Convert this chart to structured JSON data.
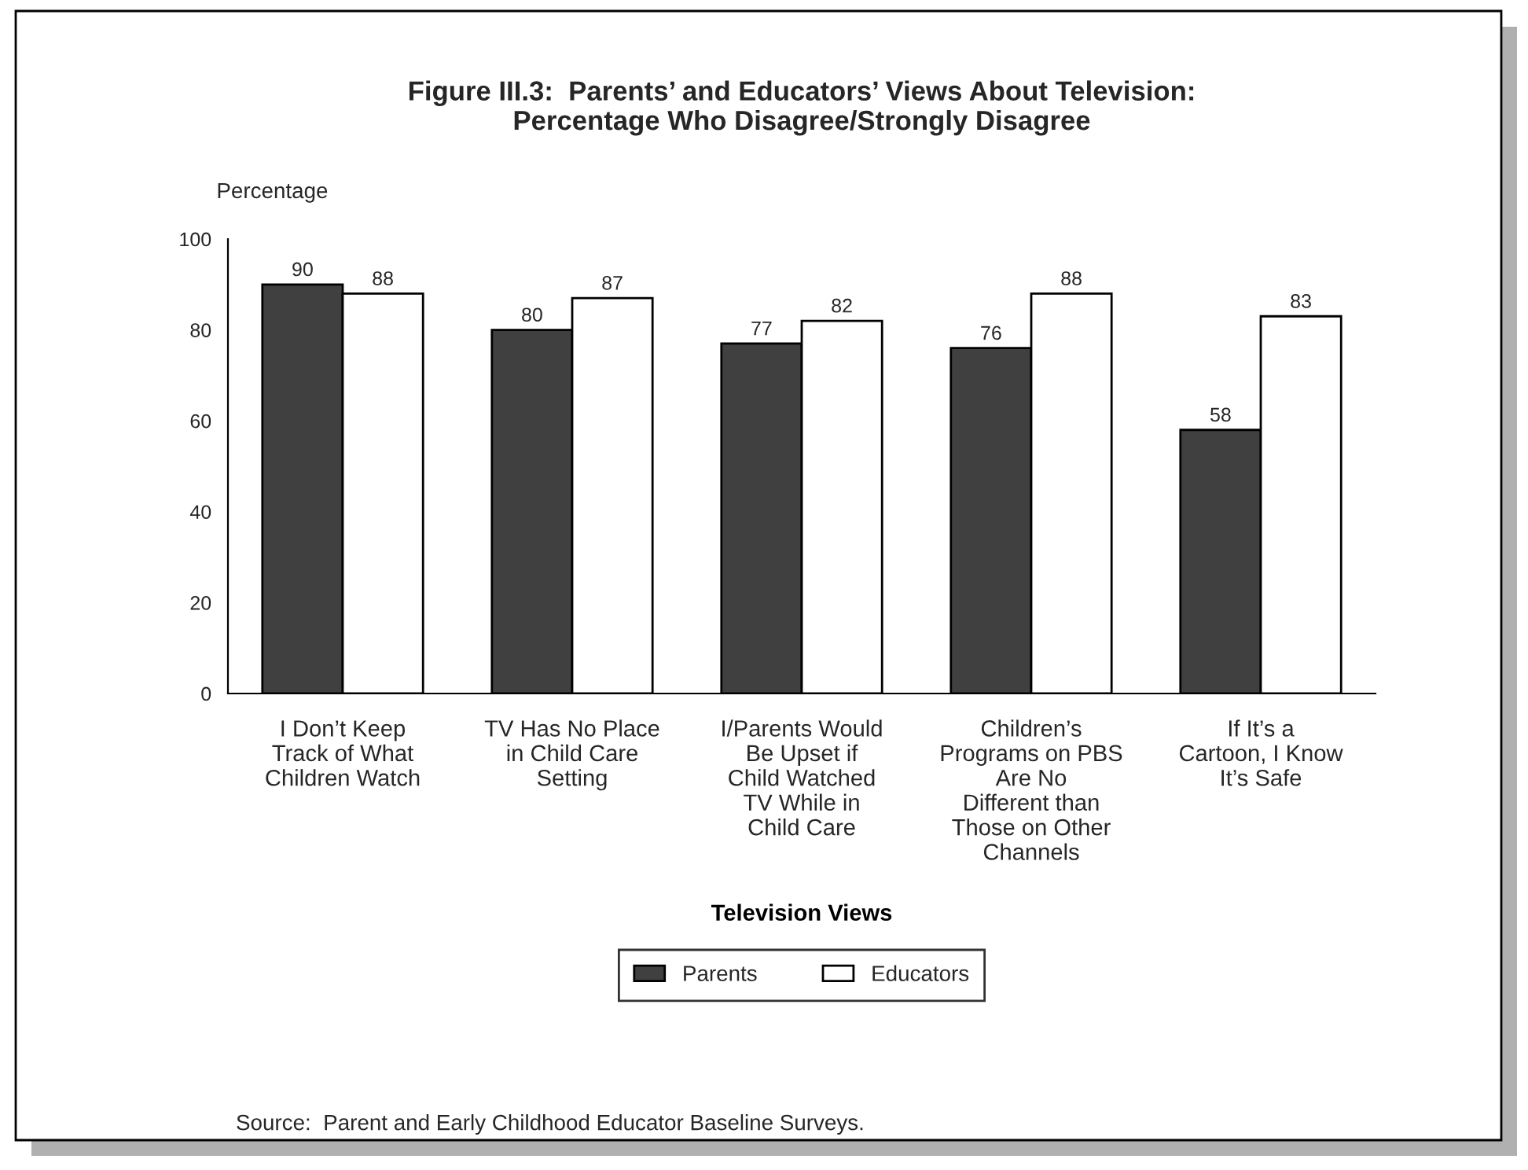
{
  "chart_data": {
    "type": "bar",
    "title": "Figure III.3:  Parents’ and Educators’ Views About Television:\nPercentage Who Disagree/Strongly Disagree",
    "ylabel": "Percentage",
    "xlabel": "Television Views",
    "categories": [
      "I Don’t Keep Track of What Children Watch",
      "TV Has No Place in Child Care Setting",
      "I/Parents Would Be Upset if Child Watched TV While in Child Care",
      "Children’s Programs on PBS Are No Different than Those on Other Channels",
      "If It’s a Cartoon, I Know It’s Safe"
    ],
    "series": [
      {
        "name": "Parents",
        "color": "#404040",
        "values": [
          90,
          80,
          77,
          76,
          58
        ]
      },
      {
        "name": "Educators",
        "color": "#ffffff",
        "values": [
          88,
          87,
          82,
          88,
          83
        ]
      }
    ],
    "ylim": [
      0,
      100
    ],
    "yticks": [
      0,
      20,
      40,
      60,
      80,
      100
    ],
    "data_labels": true,
    "grid": false,
    "legend": "bottom",
    "annotations": [
      "Source:  Parent and Early Childhood Educator Baseline Surveys."
    ]
  }
}
